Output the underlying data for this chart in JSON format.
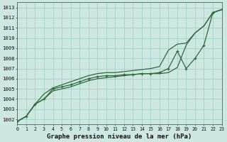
{
  "x": [
    0,
    1,
    2,
    3,
    4,
    5,
    6,
    7,
    8,
    9,
    10,
    11,
    12,
    13,
    14,
    15,
    16,
    17,
    18,
    19,
    20,
    21,
    22,
    23
  ],
  "line_marked": [
    1001.8,
    1002.3,
    1003.5,
    1004.0,
    1005.0,
    1005.2,
    1005.4,
    1005.7,
    1006.0,
    1006.2,
    1006.3,
    1006.3,
    1006.4,
    1006.4,
    1006.5,
    1006.5,
    1006.6,
    1007.0,
    1008.7,
    1007.0,
    1008.0,
    1009.3,
    1012.5,
    1012.8
  ],
  "line_upper": [
    1001.8,
    1002.3,
    1003.5,
    1004.5,
    1005.1,
    1005.4,
    1005.7,
    1006.0,
    1006.3,
    1006.5,
    1006.6,
    1006.6,
    1006.7,
    1006.8,
    1006.9,
    1007.0,
    1007.2,
    1008.8,
    1009.4,
    1009.5,
    1010.5,
    1011.2,
    1012.5,
    1012.8
  ],
  "line_lower": [
    1001.8,
    1002.3,
    1003.5,
    1004.0,
    1004.8,
    1005.0,
    1005.2,
    1005.5,
    1005.8,
    1006.0,
    1006.1,
    1006.2,
    1006.3,
    1006.4,
    1006.5,
    1006.5,
    1006.5,
    1006.6,
    1007.1,
    1009.3,
    1010.5,
    1011.2,
    1012.5,
    1012.8
  ],
  "bg_color": "#cce8e0",
  "grid_color": "#99ccc0",
  "line_color": "#2d6b3a",
  "xlabel": "Graphe pression niveau de la mer (hPa)",
  "ylim": [
    1001.5,
    1013.5
  ],
  "xlim": [
    0,
    23
  ],
  "yticks": [
    1002,
    1003,
    1004,
    1005,
    1006,
    1007,
    1008,
    1009,
    1010,
    1011,
    1012,
    1013
  ],
  "xticks": [
    0,
    1,
    2,
    3,
    4,
    5,
    6,
    7,
    8,
    9,
    10,
    11,
    12,
    13,
    14,
    15,
    16,
    17,
    18,
    19,
    20,
    21,
    22,
    23
  ]
}
